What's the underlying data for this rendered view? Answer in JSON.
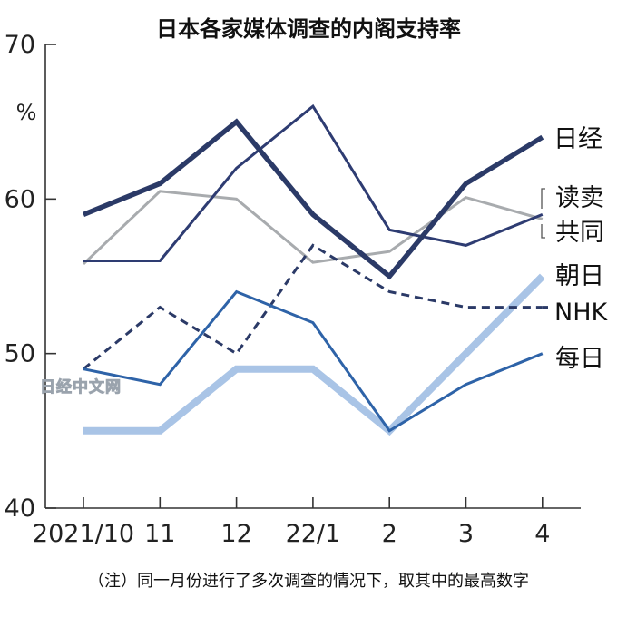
{
  "chart_data": {
    "type": "line",
    "title": "日本各家媒体调查的内阁支持率",
    "ylabel": "%",
    "xlabel": "",
    "ylim": [
      40,
      70
    ],
    "yticks": [
      40,
      50,
      60,
      70
    ],
    "categories": [
      "2021/10",
      "11",
      "12",
      "22/1",
      "2",
      "3",
      "4"
    ],
    "series": [
      {
        "name": "日经",
        "values": [
          59,
          61,
          65,
          59,
          55,
          61,
          64
        ],
        "color": "#2b3a67",
        "style": "solid",
        "weight": "bold"
      },
      {
        "name": "读卖",
        "values": [
          55.8,
          60.5,
          60,
          55.9,
          56.6,
          60.1,
          58.7
        ],
        "color": "#a8abae",
        "style": "solid",
        "weight": "normal"
      },
      {
        "name": "共同",
        "values": [
          56,
          56,
          62,
          66,
          58,
          57,
          59
        ],
        "color": "#2e3c72",
        "style": "solid",
        "weight": "normal"
      },
      {
        "name": "朝日",
        "values": [
          45,
          45,
          49,
          49,
          45,
          50,
          55
        ],
        "color": "#a9c4e6",
        "style": "solid",
        "weight": "heavy"
      },
      {
        "name": "NHK",
        "values": [
          49,
          53,
          50,
          57,
          54,
          53,
          53
        ],
        "color": "#2b3a67",
        "style": "dashed",
        "weight": "normal"
      },
      {
        "name": "每日",
        "values": [
          49,
          48,
          54,
          52,
          45,
          48,
          50
        ],
        "color": "#2e63a8",
        "style": "solid",
        "weight": "normal"
      }
    ],
    "legend_placement": "right, at line ends",
    "grid": false,
    "note": "（注）同一月份进行了多次调查的情况下，取其中的最高数字",
    "watermark": "日经中文网"
  }
}
